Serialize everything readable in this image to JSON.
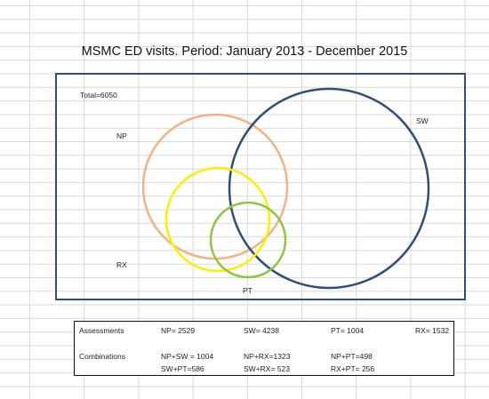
{
  "diagram": {
    "title": "MSMC ED visits. Period: January 2013 - December 2015",
    "total_label": "Total=6050",
    "sets": {
      "NP": {
        "label": "NP",
        "color": "#f4b183"
      },
      "SW": {
        "label": "SW",
        "color": "#2e4e7c"
      },
      "PT": {
        "label": "PT",
        "color": "#8cc63f"
      },
      "RX": {
        "label": "RX",
        "color": "#ffee00"
      }
    }
  },
  "table": {
    "assessments_label": "Assessments",
    "assessments": [
      "NP= 2529",
      "SW= 4238",
      "PT= 1004",
      "RX= 1532"
    ],
    "combinations_label": "Combinations",
    "combinations_row1": [
      "NP+SW = 1004",
      "NP+RX=1323",
      "NP+PT=498"
    ],
    "combinations_row2": [
      "SW+PT=586",
      "SW+RX= 523",
      "RX+PT= 256"
    ]
  }
}
